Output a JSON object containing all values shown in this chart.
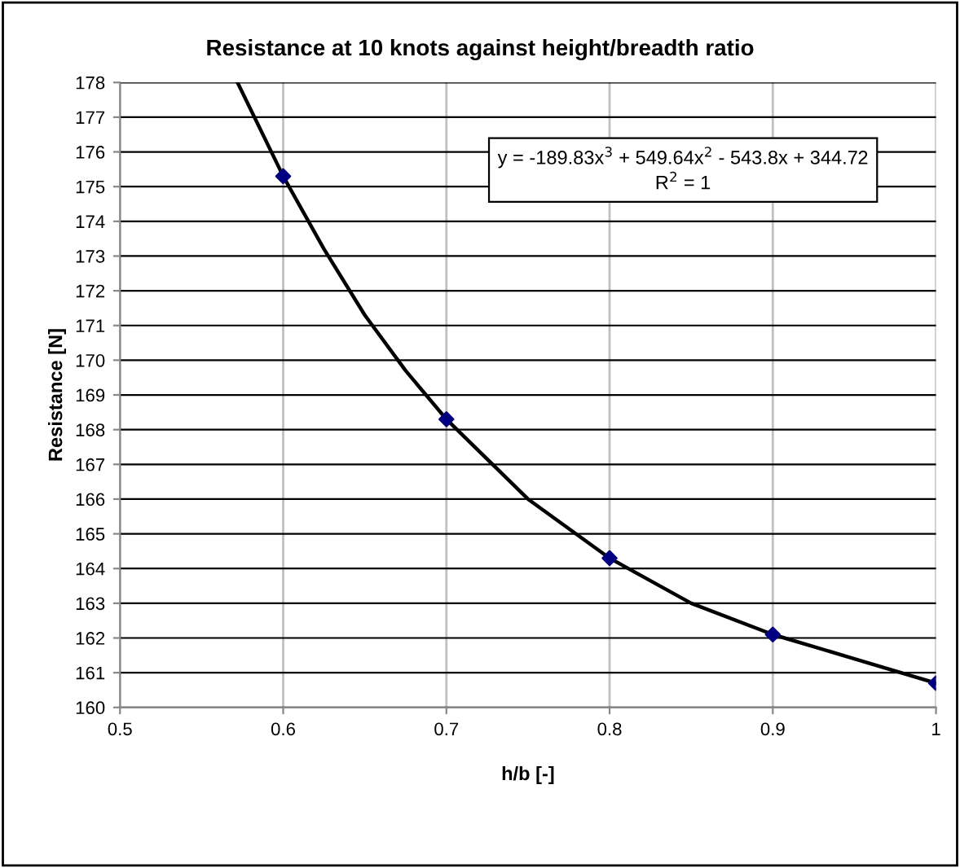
{
  "chart_data": {
    "type": "scatter",
    "title": "Resistance at 10 knots against height/breadth ratio",
    "xlabel": "h/b [-]",
    "ylabel": "Resistance [N]",
    "x": [
      0.6,
      0.7,
      0.8,
      0.9,
      1.0
    ],
    "series": [
      {
        "color": "#000080",
        "marker": "diamond",
        "values": [
          175.3,
          168.3,
          164.3,
          162.1,
          160.7
        ]
      },
      {
        "type": "line",
        "color": "#000000",
        "marker": "none",
        "line_style": "solid",
        "x": [
          0.572,
          0.6,
          0.625,
          0.65,
          0.675,
          0.7,
          0.75,
          0.8,
          0.85,
          0.9,
          0.95,
          1.0
        ],
        "values": [
          178.0,
          175.3,
          173.2,
          171.3,
          169.7,
          168.3,
          166.0,
          164.3,
          163.0,
          162.1,
          161.4,
          160.7
        ]
      }
    ],
    "xlim": [
      0.5,
      1.0
    ],
    "xticks": [
      0.5,
      0.6,
      0.7,
      0.8,
      0.9,
      1
    ],
    "ylim": [
      160,
      178
    ],
    "yticks": [
      160,
      161,
      162,
      163,
      164,
      165,
      166,
      167,
      168,
      169,
      170,
      171,
      172,
      173,
      174,
      175,
      176,
      177,
      178
    ],
    "grid": true,
    "annotations": [
      "y = -189.83x$^{3}$ + 549.64x$^{2}$ - 543.8x + 344.72",
      "R$^{2}$ = 1"
    ]
  }
}
